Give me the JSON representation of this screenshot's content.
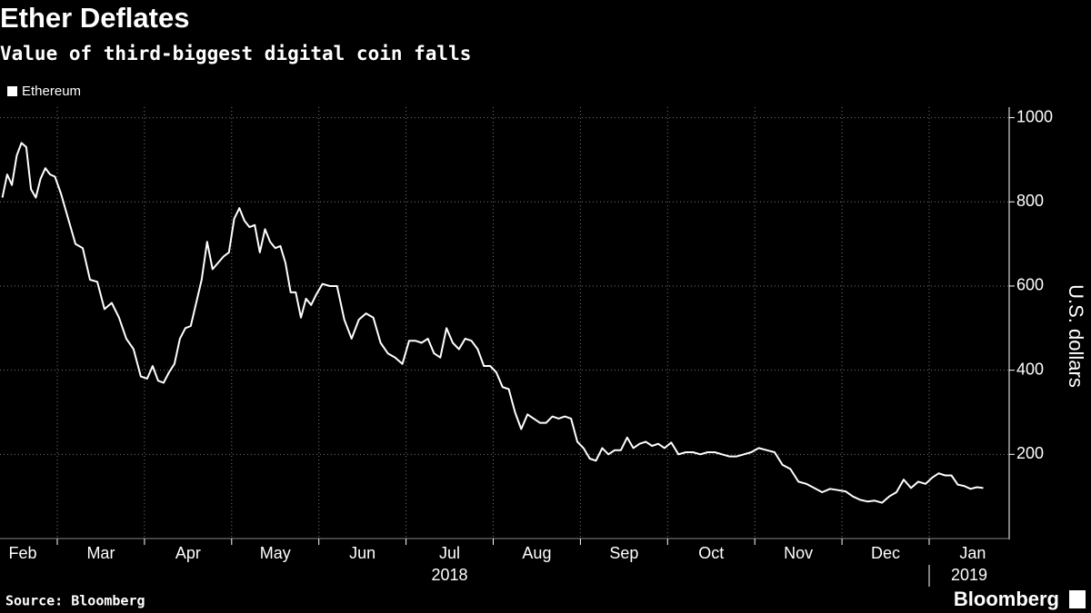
{
  "chart_data": {
    "type": "line",
    "title": "Ether Deflates",
    "subtitle": "Value of third-biggest digital coin falls",
    "y_label": "U.S. dollars",
    "source": "Source: Bloomberg",
    "brand": "Bloomberg",
    "legend": "top-left",
    "grid": true,
    "ylim": [
      0,
      1025
    ],
    "yticks": [
      200,
      400,
      600,
      800,
      1000
    ],
    "xticks": [
      {
        "value": "2018-02",
        "label": "Feb"
      },
      {
        "value": "2018-03",
        "label": "Mar"
      },
      {
        "value": "2018-04",
        "label": "Apr"
      },
      {
        "value": "2018-05",
        "label": "May"
      },
      {
        "value": "2018-06",
        "label": "Jun"
      },
      {
        "value": "2018-07",
        "label": "Jul"
      },
      {
        "value": "2018-08",
        "label": "Aug"
      },
      {
        "value": "2018-09",
        "label": "Sep"
      },
      {
        "value": "2018-10",
        "label": "Oct"
      },
      {
        "value": "2018-11",
        "label": "Nov"
      },
      {
        "value": "2018-12",
        "label": "Dec"
      },
      {
        "value": "2019-01",
        "label": "Jan"
      }
    ],
    "year_ticks": [
      {
        "value": "2018-07",
        "label": "2018"
      },
      {
        "value": "2019-01",
        "label": "2019"
      }
    ],
    "x": [
      "2018-02",
      "2018-02",
      "2018-02",
      "2018-02",
      "2018-02",
      "2018-02",
      "2018-02",
      "2018-02",
      "2018-02",
      "2018-02",
      "2018-02",
      "2018-02",
      "2018-03",
      "2018-03",
      "2018-03",
      "2018-03",
      "2018-03",
      "2018-03",
      "2018-03",
      "2018-03",
      "2018-03",
      "2018-03",
      "2018-03",
      "2018-03",
      "2018-04",
      "2018-04",
      "2018-04",
      "2018-04",
      "2018-04",
      "2018-04",
      "2018-04",
      "2018-04",
      "2018-04",
      "2018-04",
      "2018-04",
      "2018-04",
      "2018-04",
      "2018-04",
      "2018-04",
      "2018-04",
      "2018-05",
      "2018-05",
      "2018-05",
      "2018-05",
      "2018-05",
      "2018-05",
      "2018-05",
      "2018-05",
      "2018-05",
      "2018-05",
      "2018-05",
      "2018-05",
      "2018-05",
      "2018-05",
      "2018-05",
      "2018-05",
      "2018-05",
      "2018-06",
      "2018-06",
      "2018-06",
      "2018-06",
      "2018-06",
      "2018-06",
      "2018-06",
      "2018-06",
      "2018-06",
      "2018-06",
      "2018-06",
      "2018-06",
      "2018-07",
      "2018-07",
      "2018-07",
      "2018-07",
      "2018-07",
      "2018-07",
      "2018-07",
      "2018-07",
      "2018-07",
      "2018-07",
      "2018-07",
      "2018-07",
      "2018-07",
      "2018-07",
      "2018-08",
      "2018-08",
      "2018-08",
      "2018-08",
      "2018-08",
      "2018-08",
      "2018-08",
      "2018-08",
      "2018-08",
      "2018-08",
      "2018-08",
      "2018-08",
      "2018-08",
      "2018-08",
      "2018-09",
      "2018-09",
      "2018-09",
      "2018-09",
      "2018-09",
      "2018-09",
      "2018-09",
      "2018-09",
      "2018-09",
      "2018-09",
      "2018-09",
      "2018-09",
      "2018-09",
      "2018-09",
      "2018-10",
      "2018-10",
      "2018-10",
      "2018-10",
      "2018-10",
      "2018-10",
      "2018-10",
      "2018-10",
      "2018-10",
      "2018-10",
      "2018-10",
      "2018-10",
      "2018-11",
      "2018-11",
      "2018-11",
      "2018-11",
      "2018-11",
      "2018-11",
      "2018-11",
      "2018-11",
      "2018-11",
      "2018-11",
      "2018-11",
      "2018-12",
      "2018-12",
      "2018-12",
      "2018-12",
      "2018-12",
      "2018-12",
      "2018-12",
      "2018-12",
      "2018-12",
      "2018-12",
      "2018-12",
      "2018-12",
      "2019-01",
      "2019-01",
      "2019-01",
      "2019-01",
      "2019-01",
      "2019-01",
      "2019-01",
      "2019-01",
      "2019-01"
    ],
    "series": [
      {
        "name": "Ethereum",
        "color": "#ffffff",
        "values": [
          810,
          865,
          840,
          910,
          940,
          930,
          830,
          810,
          855,
          880,
          865,
          860,
          820,
          760,
          700,
          690,
          615,
          610,
          545,
          560,
          525,
          475,
          450,
          385,
          380,
          410,
          375,
          370,
          395,
          415,
          475,
          500,
          505,
          560,
          615,
          705,
          640,
          655,
          670,
          680,
          760,
          785,
          755,
          740,
          745,
          680,
          735,
          705,
          690,
          695,
          655,
          585,
          585,
          525,
          570,
          555,
          580,
          605,
          600,
          600,
          520,
          475,
          520,
          535,
          525,
          465,
          440,
          430,
          415,
          470,
          470,
          465,
          475,
          440,
          430,
          500,
          465,
          450,
          475,
          470,
          450,
          410,
          410,
          395,
          360,
          355,
          300,
          260,
          295,
          285,
          275,
          275,
          290,
          285,
          290,
          285,
          230,
          215,
          190,
          185,
          215,
          200,
          210,
          210,
          240,
          215,
          225,
          230,
          220,
          225,
          215,
          228,
          200,
          205,
          205,
          200,
          205,
          205,
          200,
          195,
          195,
          200,
          205,
          215,
          210,
          205,
          175,
          165,
          135,
          130,
          120,
          110,
          118,
          115,
          112,
          100,
          92,
          88,
          90,
          85,
          100,
          110,
          140,
          120,
          135,
          130,
          145,
          155,
          150,
          150,
          128,
          125,
          118,
          122,
          120
        ]
      }
    ]
  }
}
